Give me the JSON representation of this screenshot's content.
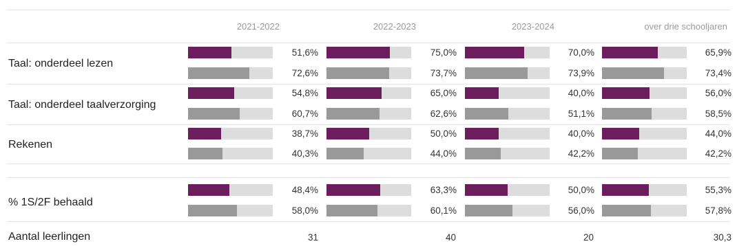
{
  "colors": {
    "current": "#6b1d5c",
    "reference": "#999999",
    "track": "#dddddd"
  },
  "chart_data": {
    "type": "bar",
    "orientation": "horizontal",
    "columns": [
      "2021-2022",
      "2022-2023",
      "2023-2024",
      "over drie schooljaren"
    ],
    "xlim": [
      0,
      100
    ],
    "rows": [
      {
        "label": "Taal: onderdeel lezen",
        "current": [
          51.6,
          75.0,
          70.0,
          65.9
        ],
        "current_text": [
          "51,6%",
          "75,0%",
          "70,0%",
          "65,9%"
        ],
        "reference": [
          72.6,
          73.7,
          73.9,
          73.4
        ],
        "reference_text": [
          "72,6%",
          "73,7%",
          "73,9%",
          "73,4%"
        ]
      },
      {
        "label": "Taal: onderdeel taalverzorging",
        "current": [
          54.8,
          65.0,
          40.0,
          56.0
        ],
        "current_text": [
          "54,8%",
          "65,0%",
          "40,0%",
          "56,0%"
        ],
        "reference": [
          60.7,
          62.6,
          51.1,
          58.5
        ],
        "reference_text": [
          "60,7%",
          "62,6%",
          "51,1%",
          "58,5%"
        ]
      },
      {
        "label": "Rekenen",
        "current": [
          38.7,
          50.0,
          40.0,
          44.0
        ],
        "current_text": [
          "38,7%",
          "50,0%",
          "40,0%",
          "44,0%"
        ],
        "reference": [
          40.3,
          44.0,
          42.2,
          42.2
        ],
        "reference_text": [
          "40,3%",
          "44,0%",
          "42,2%",
          "42,2%"
        ]
      },
      {
        "label": "% 1S/2F behaald",
        "current": [
          48.4,
          63.3,
          50.0,
          55.3
        ],
        "current_text": [
          "48,4%",
          "63,3%",
          "50,0%",
          "55,3%"
        ],
        "reference": [
          58.0,
          60.1,
          56.0,
          57.8
        ],
        "reference_text": [
          "58,0%",
          "60,1%",
          "56,0%",
          "57,8%"
        ]
      }
    ],
    "footer": {
      "label": "Aantal leerlingen",
      "values": [
        "31",
        "40",
        "20",
        "30,3"
      ]
    }
  }
}
